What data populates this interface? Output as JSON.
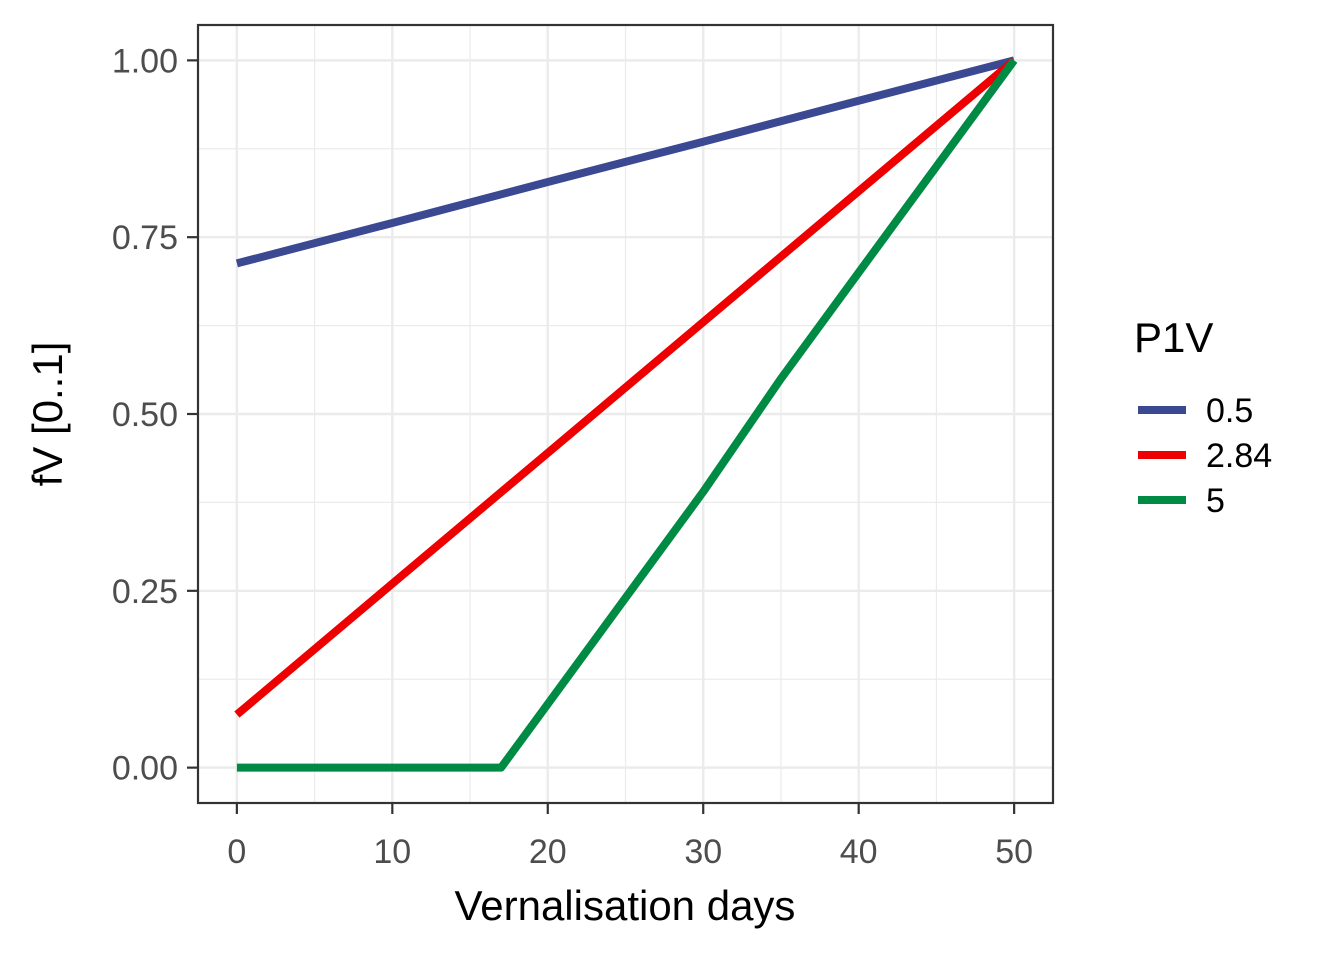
{
  "chart_data": {
    "type": "line",
    "xlabel": "Vernalisation days",
    "ylabel": "fV [0..1]",
    "xlim": [
      -2.5,
      52.5
    ],
    "ylim": [
      -0.05,
      1.05
    ],
    "x_ticks": [
      0,
      10,
      20,
      30,
      40,
      50
    ],
    "x_tick_labels": [
      "0",
      "10",
      "20",
      "30",
      "40",
      "50"
    ],
    "y_ticks": [
      0,
      0.25,
      0.5,
      0.75,
      1
    ],
    "y_tick_labels": [
      "0.00",
      "0.25",
      "0.50",
      "0.75",
      "1.00"
    ],
    "grid": true,
    "legend": {
      "title": "P1V",
      "placement": "right"
    },
    "series": [
      {
        "name": "0.5",
        "color": "#3B4992",
        "points": [
          [
            0,
            0.713
          ],
          [
            10,
            0.77
          ],
          [
            20,
            0.828
          ],
          [
            30,
            0.885
          ],
          [
            40,
            0.943
          ],
          [
            50,
            1.0
          ]
        ]
      },
      {
        "name": "2.84",
        "color": "#EE0000",
        "points": [
          [
            0,
            0.075
          ],
          [
            10,
            0.26
          ],
          [
            20,
            0.445
          ],
          [
            30,
            0.63
          ],
          [
            40,
            0.815
          ],
          [
            50,
            1.0
          ]
        ]
      },
      {
        "name": "5",
        "color": "#008B45",
        "points": [
          [
            0,
            0.0
          ],
          [
            17,
            0.0
          ],
          [
            20,
            0.09
          ],
          [
            25,
            0.24
          ],
          [
            30,
            0.39
          ],
          [
            35,
            0.55
          ],
          [
            40,
            0.7
          ],
          [
            45,
            0.85
          ],
          [
            50,
            1.0
          ]
        ]
      }
    ]
  }
}
